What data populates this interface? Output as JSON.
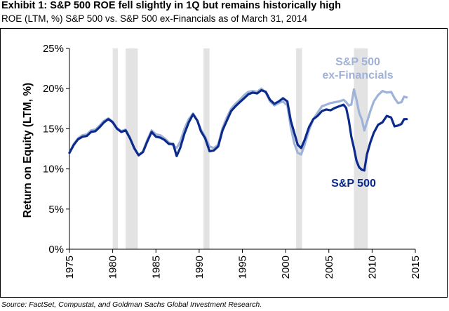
{
  "header": {
    "title": "Exhibit 1: S&P 500 ROE fell slightly in 1Q but remains historically high",
    "subtitle": "ROE (LTM, %) S&P 500 vs. S&P 500 ex-Financials as of March 31, 2014"
  },
  "footer": {
    "source": "Source: FactSet, Compustat, and Goldman Sachs Global Investment Research."
  },
  "chart_data": {
    "type": "line",
    "ylabel": "Return on Equity (LTM, %)",
    "xlabel": "",
    "xlim": [
      1975,
      2015
    ],
    "ylim": [
      0,
      25
    ],
    "x_ticks": [
      "1975",
      "1980",
      "1985",
      "1990",
      "1995",
      "2000",
      "2005",
      "2010",
      "2015"
    ],
    "y_ticks": [
      "0%",
      "5%",
      "10%",
      "15%",
      "20%",
      "25%"
    ],
    "grid": false,
    "recession_bands": [
      [
        1980.0,
        1980.6
      ],
      [
        1981.5,
        1982.9
      ],
      [
        1990.5,
        1991.2
      ],
      [
        2001.2,
        2001.9
      ],
      [
        2007.9,
        2009.5
      ]
    ],
    "annotations": [
      {
        "text_line1": "S&P 500",
        "text_line2": "ex-Financials",
        "series": "S&P 500 ex-Financials"
      },
      {
        "text_line1": "S&P 500",
        "text_line2": "",
        "series": "S&P 500"
      }
    ],
    "series": [
      {
        "name": "S&P 500",
        "color": "#0b2a8c",
        "points": [
          [
            1975.0,
            12.0
          ],
          [
            1975.5,
            13.0
          ],
          [
            1976.0,
            13.7
          ],
          [
            1976.5,
            14.0
          ],
          [
            1977.0,
            14.1
          ],
          [
            1977.5,
            14.6
          ],
          [
            1978.0,
            14.7
          ],
          [
            1978.5,
            15.2
          ],
          [
            1979.0,
            15.8
          ],
          [
            1979.5,
            16.2
          ],
          [
            1980.0,
            15.8
          ],
          [
            1980.5,
            15.0
          ],
          [
            1981.0,
            14.6
          ],
          [
            1981.5,
            14.8
          ],
          [
            1982.0,
            13.8
          ],
          [
            1982.5,
            12.6
          ],
          [
            1983.0,
            11.7
          ],
          [
            1983.5,
            12.1
          ],
          [
            1984.0,
            13.4
          ],
          [
            1984.5,
            14.6
          ],
          [
            1985.0,
            14.0
          ],
          [
            1985.5,
            13.9
          ],
          [
            1986.0,
            13.6
          ],
          [
            1986.5,
            13.1
          ],
          [
            1987.0,
            13.1
          ],
          [
            1987.4,
            11.6
          ],
          [
            1987.8,
            12.6
          ],
          [
            1988.3,
            14.4
          ],
          [
            1988.8,
            15.8
          ],
          [
            1989.3,
            16.8
          ],
          [
            1989.8,
            16.0
          ],
          [
            1990.2,
            14.7
          ],
          [
            1990.7,
            13.8
          ],
          [
            1991.2,
            12.2
          ],
          [
            1991.7,
            12.3
          ],
          [
            1992.2,
            12.8
          ],
          [
            1992.7,
            14.8
          ],
          [
            1993.2,
            16.0
          ],
          [
            1993.7,
            17.2
          ],
          [
            1994.2,
            17.8
          ],
          [
            1994.7,
            18.3
          ],
          [
            1995.2,
            18.8
          ],
          [
            1995.7,
            19.3
          ],
          [
            1996.2,
            19.5
          ],
          [
            1996.7,
            19.4
          ],
          [
            1997.2,
            19.8
          ],
          [
            1997.7,
            19.6
          ],
          [
            1998.2,
            18.6
          ],
          [
            1998.7,
            18.1
          ],
          [
            1999.2,
            18.4
          ],
          [
            1999.7,
            18.8
          ],
          [
            2000.2,
            18.4
          ],
          [
            2000.6,
            16.0
          ],
          [
            2001.0,
            14.5
          ],
          [
            2001.4,
            13.0
          ],
          [
            2001.8,
            12.6
          ],
          [
            2002.2,
            13.6
          ],
          [
            2002.7,
            15.2
          ],
          [
            2003.2,
            16.2
          ],
          [
            2003.7,
            16.6
          ],
          [
            2004.2,
            17.2
          ],
          [
            2004.7,
            17.4
          ],
          [
            2005.2,
            17.3
          ],
          [
            2005.7,
            17.6
          ],
          [
            2006.2,
            17.8
          ],
          [
            2006.7,
            18.0
          ],
          [
            2007.0,
            17.6
          ],
          [
            2007.3,
            16.1
          ],
          [
            2007.6,
            14.0
          ],
          [
            2007.9,
            12.6
          ],
          [
            2008.2,
            11.0
          ],
          [
            2008.5,
            10.2
          ],
          [
            2008.8,
            9.9
          ],
          [
            2009.1,
            9.8
          ],
          [
            2009.4,
            11.8
          ],
          [
            2009.8,
            13.3
          ],
          [
            2010.2,
            14.5
          ],
          [
            2010.7,
            15.5
          ],
          [
            2011.2,
            15.8
          ],
          [
            2011.7,
            16.6
          ],
          [
            2012.2,
            16.4
          ],
          [
            2012.6,
            15.3
          ],
          [
            2013.0,
            15.4
          ],
          [
            2013.4,
            15.6
          ],
          [
            2013.7,
            16.2
          ],
          [
            2014.0,
            16.2
          ]
        ]
      },
      {
        "name": "S&P 500 ex-Financials",
        "color": "#9fb2d8",
        "points": [
          [
            1975.0,
            12.0
          ],
          [
            1975.5,
            13.1
          ],
          [
            1976.0,
            13.8
          ],
          [
            1976.5,
            14.2
          ],
          [
            1977.0,
            14.3
          ],
          [
            1977.5,
            14.8
          ],
          [
            1978.0,
            14.9
          ],
          [
            1978.5,
            15.4
          ],
          [
            1979.0,
            16.0
          ],
          [
            1979.5,
            16.3
          ],
          [
            1980.0,
            15.9
          ],
          [
            1980.5,
            15.1
          ],
          [
            1981.0,
            14.7
          ],
          [
            1981.5,
            14.9
          ],
          [
            1982.0,
            13.9
          ],
          [
            1982.5,
            12.5
          ],
          [
            1983.0,
            11.7
          ],
          [
            1983.5,
            12.2
          ],
          [
            1984.0,
            13.6
          ],
          [
            1984.5,
            14.8
          ],
          [
            1985.0,
            14.3
          ],
          [
            1985.5,
            14.2
          ],
          [
            1986.0,
            13.8
          ],
          [
            1986.5,
            13.3
          ],
          [
            1987.0,
            12.9
          ],
          [
            1987.4,
            12.6
          ],
          [
            1987.8,
            13.4
          ],
          [
            1988.3,
            15.0
          ],
          [
            1988.8,
            16.2
          ],
          [
            1989.3,
            16.9
          ],
          [
            1989.8,
            16.0
          ],
          [
            1990.2,
            14.9
          ],
          [
            1990.7,
            14.0
          ],
          [
            1991.2,
            12.8
          ],
          [
            1991.7,
            12.6
          ],
          [
            1992.2,
            13.0
          ],
          [
            1992.7,
            15.1
          ],
          [
            1993.2,
            16.4
          ],
          [
            1993.7,
            17.5
          ],
          [
            1994.2,
            18.1
          ],
          [
            1994.7,
            18.6
          ],
          [
            1995.2,
            19.2
          ],
          [
            1995.7,
            19.6
          ],
          [
            1996.2,
            19.7
          ],
          [
            1996.7,
            19.6
          ],
          [
            1997.2,
            20.0
          ],
          [
            1997.7,
            19.5
          ],
          [
            1998.2,
            18.4
          ],
          [
            1998.7,
            17.9
          ],
          [
            1999.2,
            18.2
          ],
          [
            1999.7,
            18.4
          ],
          [
            2000.2,
            17.9
          ],
          [
            2000.6,
            15.2
          ],
          [
            2001.0,
            13.2
          ],
          [
            2001.4,
            12.0
          ],
          [
            2001.8,
            11.8
          ],
          [
            2002.2,
            13.0
          ],
          [
            2002.7,
            14.8
          ],
          [
            2003.2,
            16.2
          ],
          [
            2003.7,
            17.0
          ],
          [
            2004.2,
            17.8
          ],
          [
            2004.7,
            18.0
          ],
          [
            2005.2,
            18.2
          ],
          [
            2005.7,
            18.3
          ],
          [
            2006.2,
            18.4
          ],
          [
            2006.7,
            18.6
          ],
          [
            2007.0,
            18.3
          ],
          [
            2007.3,
            17.9
          ],
          [
            2007.6,
            18.0
          ],
          [
            2007.9,
            19.9
          ],
          [
            2008.2,
            18.6
          ],
          [
            2008.5,
            17.0
          ],
          [
            2008.8,
            16.2
          ],
          [
            2009.1,
            14.8
          ],
          [
            2009.4,
            15.8
          ],
          [
            2009.8,
            17.2
          ],
          [
            2010.2,
            18.4
          ],
          [
            2010.7,
            19.2
          ],
          [
            2011.2,
            19.7
          ],
          [
            2011.7,
            19.5
          ],
          [
            2012.2,
            19.6
          ],
          [
            2012.6,
            18.8
          ],
          [
            2013.0,
            18.2
          ],
          [
            2013.4,
            18.3
          ],
          [
            2013.7,
            19.0
          ],
          [
            2014.0,
            18.9
          ]
        ]
      }
    ]
  }
}
